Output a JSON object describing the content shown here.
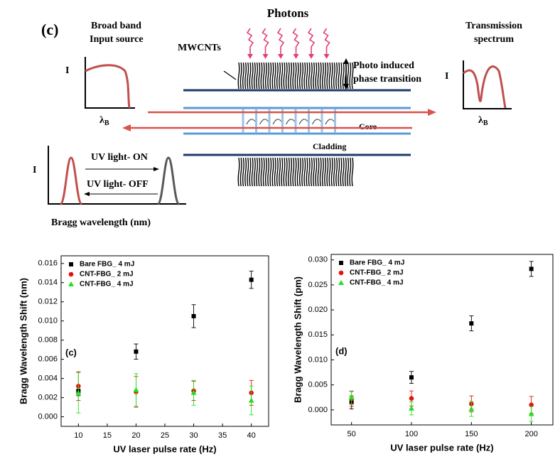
{
  "diagram": {
    "panel": "(c)",
    "photons": "Photons",
    "input_source": [
      "Broad band",
      "Input source"
    ],
    "mwcnts": "MWCNTs",
    "phase_transition": [
      "Photo induced",
      "phase transition"
    ],
    "transmission": [
      "Transmission",
      "spectrum"
    ],
    "intensity": "I",
    "lambda": {
      "symbol": "λ",
      "subscript": "B"
    },
    "core": "Core",
    "cladding": "Cladding",
    "uv_on": "UV light- ON",
    "uv_off": "UV light- OFF",
    "bragg": "Bragg wavelength (nm)"
  },
  "chart_data": [
    {
      "type": "scatter",
      "annotation": "(c)",
      "x_label": "UV laser pulse rate (Hz)",
      "y_label": "Bragg Wavelength Shift (nm)",
      "x": [
        10,
        20,
        30,
        40
      ],
      "xlim": [
        7,
        43
      ],
      "xticks": [
        10,
        15,
        20,
        25,
        30,
        35,
        40
      ],
      "ylim": [
        -0.001,
        0.0168
      ],
      "yticks": [
        {
          "value": 0,
          "label": "0.000"
        },
        0.002,
        0.004,
        0.006,
        0.008,
        {
          "value": 0.01,
          "label": "0.010"
        },
        0.012,
        0.014,
        0.016
      ],
      "legend": "upper left",
      "series": [
        {
          "name": "Bare FBG_ 4 mJ",
          "color": "#000000",
          "marker": "square",
          "values": [
            0.0027,
            0.0068,
            0.0105,
            0.0143
          ],
          "error": [
            0.0005,
            0.0008,
            0.0012,
            0.0009
          ]
        },
        {
          "name": "CNT-FBG_ 2 mJ",
          "color": "#e8120c",
          "marker": "circle",
          "values": [
            0.0032,
            0.0026,
            0.0027,
            0.0025
          ],
          "error": [
            0.0015,
            0.0016,
            0.001,
            0.0013
          ]
        },
        {
          "name": "CNT-FBG_ 4 mJ",
          "color": "#22e022",
          "marker": "triangle",
          "values": [
            0.0025,
            0.0028,
            0.0025,
            0.0017
          ],
          "error": [
            0.0021,
            0.0017,
            0.0013,
            0.0015
          ]
        }
      ]
    },
    {
      "type": "scatter",
      "annotation": "(d)",
      "x_label": "UV laser pulse rate (Hz)",
      "y_label": "Bragg Wavelength Shift (pm)",
      "x": [
        50,
        100,
        150,
        200
      ],
      "xlim": [
        33,
        218
      ],
      "xticks": [
        50,
        100,
        150,
        200
      ],
      "ylim": [
        -0.003,
        0.0311
      ],
      "yticks": [
        {
          "value": 0,
          "label": "0.000"
        },
        0.005,
        {
          "value": 0.01,
          "label": "0.010"
        },
        0.015,
        {
          "value": 0.02,
          "label": "0.020"
        },
        0.025,
        {
          "value": 0.03,
          "label": "0.030"
        }
      ],
      "legend": "upper left",
      "series": [
        {
          "name": "Bare FBG_ 4 mJ",
          "color": "#000000",
          "marker": "square",
          "values": [
            0.0015,
            0.0065,
            0.0173,
            0.0282
          ],
          "error": [
            0.0013,
            0.0012,
            0.0015,
            0.0015
          ]
        },
        {
          "name": "CNT-FBG_ 2 mJ",
          "color": "#e8120c",
          "marker": "circle",
          "values": [
            0.0022,
            0.0023,
            0.0012,
            0.001
          ],
          "error": [
            0.0015,
            0.0015,
            0.0016,
            0.0017
          ]
        },
        {
          "name": "CNT-FBG_ 4 mJ",
          "color": "#22e022",
          "marker": "triangle",
          "values": [
            0.0025,
            0.0003,
            0.0002,
            -0.0008
          ],
          "error": [
            0.0013,
            0.0013,
            0.0015,
            0.0015
          ]
        }
      ]
    }
  ]
}
